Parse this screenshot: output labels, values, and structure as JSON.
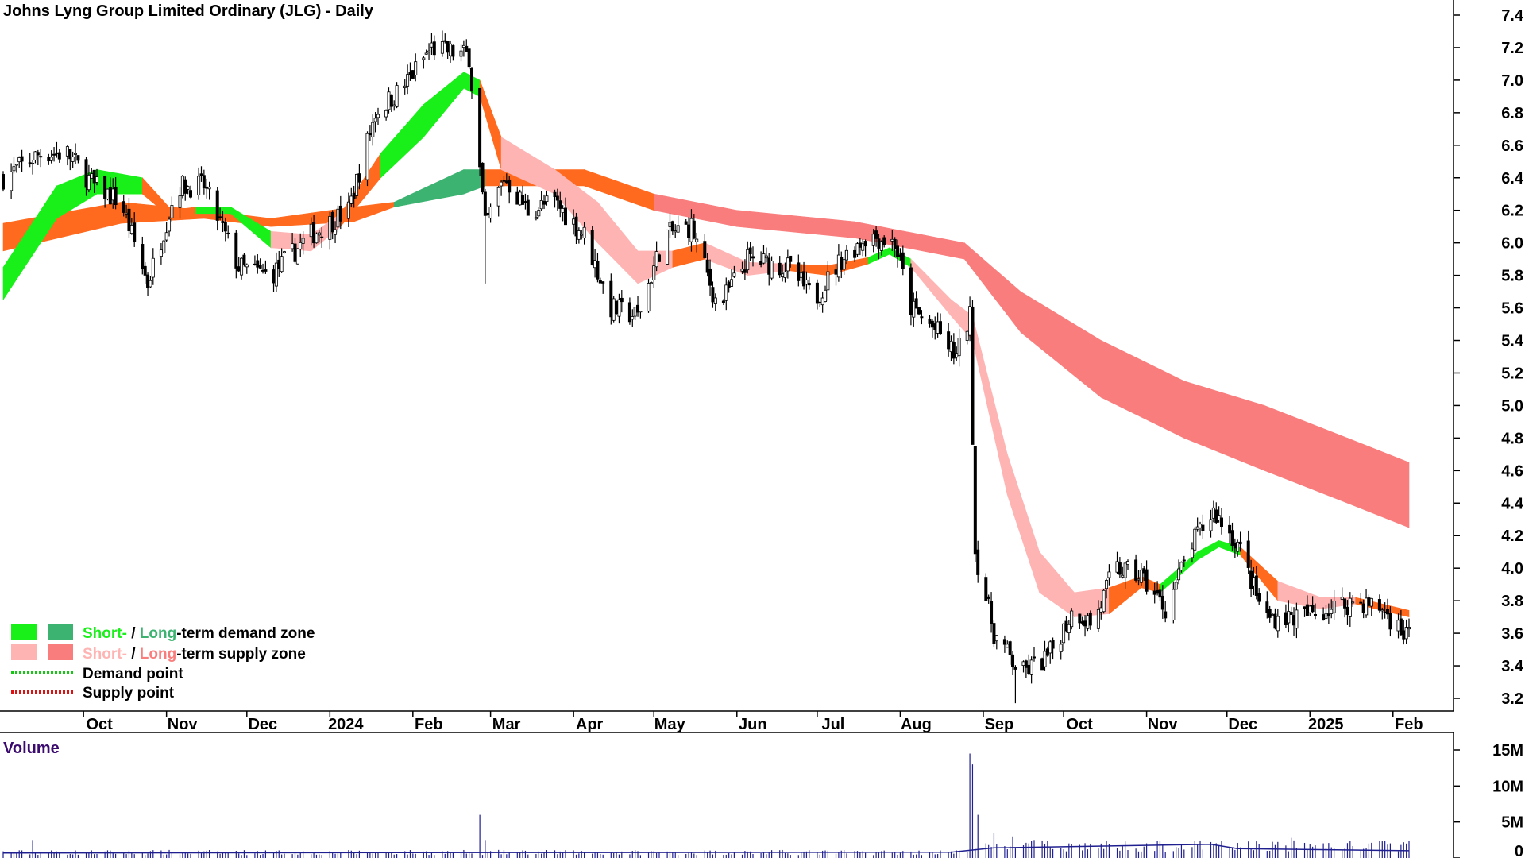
{
  "title": "Johns Lyng Group Limited Ordinary (JLG) - Daily",
  "legend": {
    "demand_short": "Short-",
    "demand_sep": " / ",
    "demand_long": "Long",
    "demand_rest": "-term demand zone",
    "supply_short": "Short-",
    "supply_sep": " / ",
    "supply_long": "Long",
    "supply_rest": "-term supply zone",
    "demand_point": "Demand point",
    "supply_point": "Supply point"
  },
  "volume_title": "Volume",
  "colors": {
    "short_demand": "#19ef19",
    "long_demand": "#3cb371",
    "short_supply": "#ffb4b4",
    "long_supply": "#fa7d7d",
    "orange": "#ff6a1f",
    "demand_point": "#12c912",
    "supply_point": "#e01010",
    "volume": "#1f1f8f"
  },
  "chart_data": {
    "type": "candlestick",
    "title": "Johns Lyng Group Limited Ordinary (JLG) - Daily",
    "y_ticks": [
      "7.4",
      "7.2",
      "7.0",
      "6.8",
      "6.6",
      "6.4",
      "6.2",
      "6.0",
      "5.8",
      "5.6",
      "5.4",
      "5.2",
      "5.0",
      "4.8",
      "4.6",
      "4.4",
      "4.2",
      "4.0",
      "3.8",
      "3.6",
      "3.4",
      "3.2"
    ],
    "ylim": [
      3.1,
      7.5
    ],
    "x_ticks": [
      "Oct",
      "Nov",
      "Dec",
      "2024",
      "Feb",
      "Mar",
      "Apr",
      "May",
      "Jun",
      "Jul",
      "Aug",
      "Sep",
      "Oct",
      "Nov",
      "Dec",
      "2025",
      "Feb"
    ],
    "price_path": [
      [
        "2023-09-01",
        6.4
      ],
      [
        "2023-09-15",
        6.55
      ],
      [
        "2023-09-25",
        6.55
      ],
      [
        "2023-10-05",
        6.35
      ],
      [
        "2023-10-15",
        6.25
      ],
      [
        "2023-10-25",
        5.75
      ],
      [
        "2023-11-05",
        6.35
      ],
      [
        "2023-11-15",
        6.35
      ],
      [
        "2023-11-28",
        5.85
      ],
      [
        "2023-12-10",
        5.8
      ],
      [
        "2023-12-25",
        6.05
      ],
      [
        "2024-01-08",
        6.2
      ],
      [
        "2024-01-18",
        6.8
      ],
      [
        "2024-01-28",
        6.95
      ],
      [
        "2024-02-08",
        7.2
      ],
      [
        "2024-02-22",
        7.15
      ],
      [
        "2024-02-28",
        6.1
      ],
      [
        "2024-03-06",
        6.4
      ],
      [
        "2024-03-15",
        6.2
      ],
      [
        "2024-03-25",
        6.25
      ],
      [
        "2024-04-05",
        6.05
      ],
      [
        "2024-04-15",
        5.6
      ],
      [
        "2024-04-25",
        5.55
      ],
      [
        "2024-05-05",
        6.05
      ],
      [
        "2024-05-15",
        6.1
      ],
      [
        "2024-05-25",
        5.6
      ],
      [
        "2024-06-05",
        5.9
      ],
      [
        "2024-06-20",
        5.85
      ],
      [
        "2024-06-30",
        5.65
      ],
      [
        "2024-07-10",
        5.9
      ],
      [
        "2024-07-20",
        6.05
      ],
      [
        "2024-07-30",
        6.0
      ],
      [
        "2024-08-05",
        5.6
      ],
      [
        "2024-08-15",
        5.45
      ],
      [
        "2024-08-22",
        5.3
      ],
      [
        "2024-08-27",
        5.55
      ],
      [
        "2024-08-29",
        4.1
      ],
      [
        "2024-09-05",
        3.6
      ],
      [
        "2024-09-15",
        3.35
      ],
      [
        "2024-09-25",
        3.45
      ],
      [
        "2024-10-05",
        3.75
      ],
      [
        "2024-10-12",
        3.65
      ],
      [
        "2024-10-20",
        4.0
      ],
      [
        "2024-10-30",
        3.95
      ],
      [
        "2024-11-08",
        3.75
      ],
      [
        "2024-11-18",
        4.15
      ],
      [
        "2024-11-26",
        4.35
      ],
      [
        "2024-12-05",
        4.15
      ],
      [
        "2024-12-15",
        3.7
      ],
      [
        "2024-12-28",
        3.7
      ],
      [
        "2025-01-08",
        3.75
      ],
      [
        "2025-01-18",
        3.8
      ],
      [
        "2025-01-28",
        3.75
      ],
      [
        "2025-02-05",
        3.6
      ]
    ],
    "zones": {
      "short_term": [
        {
          "date": "2023-09-01",
          "a": 5.65,
          "b": 5.85,
          "z": "short_demand"
        },
        {
          "date": "2023-09-21",
          "a": 6.15,
          "b": 6.35,
          "z": "short_demand"
        },
        {
          "date": "2023-10-06",
          "a": 6.3,
          "b": 6.45,
          "z": "short_demand"
        },
        {
          "date": "2023-10-23",
          "a": 6.3,
          "b": 6.4,
          "z": "orange"
        },
        {
          "date": "2023-11-03",
          "a": 6.15,
          "b": 6.2,
          "z": "orange"
        },
        {
          "date": "2023-11-12",
          "a": 6.18,
          "b": 6.22,
          "z": "short_demand"
        },
        {
          "date": "2023-11-25",
          "a": 6.18,
          "b": 6.22,
          "z": "short_demand"
        },
        {
          "date": "2023-12-10",
          "a": 5.97,
          "b": 6.07,
          "z": "short_supply"
        },
        {
          "date": "2023-12-25",
          "a": 5.95,
          "b": 6.05,
          "z": "short_supply"
        },
        {
          "date": "2024-01-05",
          "a": 6.1,
          "b": 6.18,
          "z": "orange"
        },
        {
          "date": "2024-01-20",
          "a": 6.4,
          "b": 6.55,
          "z": "short_demand"
        },
        {
          "date": "2024-02-05",
          "a": 6.65,
          "b": 6.85,
          "z": "short_demand"
        },
        {
          "date": "2024-02-20",
          "a": 6.95,
          "b": 7.05,
          "z": "short_demand"
        },
        {
          "date": "2024-02-26",
          "a": 6.9,
          "b": 7.0,
          "z": "orange"
        },
        {
          "date": "2024-03-05",
          "a": 6.45,
          "b": 6.65,
          "z": "short_supply"
        },
        {
          "date": "2024-03-25",
          "a": 6.3,
          "b": 6.45,
          "z": "short_supply"
        },
        {
          "date": "2024-04-10",
          "a": 6.0,
          "b": 6.25,
          "z": "short_supply"
        },
        {
          "date": "2024-04-25",
          "a": 5.75,
          "b": 5.95,
          "z": "short_supply"
        },
        {
          "date": "2024-05-08",
          "a": 5.85,
          "b": 5.95,
          "z": "orange"
        },
        {
          "date": "2024-05-20",
          "a": 5.9,
          "b": 6.0,
          "z": "short_supply"
        },
        {
          "date": "2024-06-05",
          "a": 5.8,
          "b": 5.88,
          "z": "short_supply"
        },
        {
          "date": "2024-06-20",
          "a": 5.83,
          "b": 5.87,
          "z": "orange"
        },
        {
          "date": "2024-07-05",
          "a": 5.8,
          "b": 5.86,
          "z": "orange"
        },
        {
          "date": "2024-07-20",
          "a": 5.87,
          "b": 5.91,
          "z": "short_demand"
        },
        {
          "date": "2024-07-28",
          "a": 5.93,
          "b": 5.97,
          "z": "short_demand"
        },
        {
          "date": "2024-08-05",
          "a": 5.85,
          "b": 5.9,
          "z": "short_supply"
        },
        {
          "date": "2024-08-20",
          "a": 5.55,
          "b": 5.65,
          "z": "short_supply"
        },
        {
          "date": "2024-08-28",
          "a": 5.4,
          "b": 5.55,
          "z": "short_supply"
        },
        {
          "date": "2024-09-10",
          "a": 4.45,
          "b": 4.7,
          "z": "short_supply"
        },
        {
          "date": "2024-09-22",
          "a": 3.85,
          "b": 4.1,
          "z": "short_supply"
        },
        {
          "date": "2024-10-05",
          "a": 3.7,
          "b": 3.85,
          "z": "short_supply"
        },
        {
          "date": "2024-10-18",
          "a": 3.72,
          "b": 3.88,
          "z": "orange"
        },
        {
          "date": "2024-10-30",
          "a": 3.88,
          "b": 3.95,
          "z": "orange"
        },
        {
          "date": "2024-11-06",
          "a": 3.85,
          "b": 3.9,
          "z": "short_demand"
        },
        {
          "date": "2024-11-20",
          "a": 4.05,
          "b": 4.1,
          "z": "short_demand"
        },
        {
          "date": "2024-11-28",
          "a": 4.13,
          "b": 4.17,
          "z": "short_demand"
        },
        {
          "date": "2024-12-06",
          "a": 4.08,
          "b": 4.13,
          "z": "orange"
        },
        {
          "date": "2024-12-20",
          "a": 3.8,
          "b": 3.92,
          "z": "short_supply"
        },
        {
          "date": "2025-01-05",
          "a": 3.75,
          "b": 3.82,
          "z": "short_supply"
        },
        {
          "date": "2025-01-18",
          "a": 3.78,
          "b": 3.82,
          "z": "orange"
        },
        {
          "date": "2025-02-07",
          "a": 3.7,
          "b": 3.74,
          "z": "short_supply"
        }
      ],
      "long_term": [
        {
          "date": "2023-09-01",
          "a": 5.95,
          "b": 6.12,
          "z": "orange"
        },
        {
          "date": "2023-10-15",
          "a": 6.12,
          "b": 6.25,
          "z": "orange"
        },
        {
          "date": "2023-11-15",
          "a": 6.15,
          "b": 6.2,
          "z": "orange"
        },
        {
          "date": "2023-12-10",
          "a": 6.1,
          "b": 6.15,
          "z": "orange"
        },
        {
          "date": "2024-01-10",
          "a": 6.13,
          "b": 6.22,
          "z": "orange"
        },
        {
          "date": "2024-01-25",
          "a": 6.22,
          "b": 6.25,
          "z": "long_demand"
        },
        {
          "date": "2024-02-20",
          "a": 6.3,
          "b": 6.45,
          "z": "long_demand"
        },
        {
          "date": "2024-02-28",
          "a": 6.35,
          "b": 6.45,
          "z": "orange"
        },
        {
          "date": "2024-04-05",
          "a": 6.35,
          "b": 6.45,
          "z": "orange"
        },
        {
          "date": "2024-05-01",
          "a": 6.2,
          "b": 6.3,
          "z": "long_supply"
        },
        {
          "date": "2024-06-01",
          "a": 6.1,
          "b": 6.2,
          "z": "long_supply"
        },
        {
          "date": "2024-07-15",
          "a": 6.03,
          "b": 6.13,
          "z": "long_supply"
        },
        {
          "date": "2024-08-25",
          "a": 5.9,
          "b": 6.0,
          "z": "long_supply"
        },
        {
          "date": "2024-09-15",
          "a": 5.45,
          "b": 5.7,
          "z": "long_supply"
        },
        {
          "date": "2024-10-15",
          "a": 5.05,
          "b": 5.4,
          "z": "long_supply"
        },
        {
          "date": "2024-11-15",
          "a": 4.8,
          "b": 5.15,
          "z": "long_supply"
        },
        {
          "date": "2024-12-15",
          "a": 4.6,
          "b": 5.0,
          "z": "long_supply"
        },
        {
          "date": "2025-01-15",
          "a": 4.4,
          "b": 4.8,
          "z": "long_supply"
        },
        {
          "date": "2025-02-07",
          "a": 4.25,
          "b": 4.65,
          "z": "long_supply"
        }
      ]
    },
    "volume": {
      "y_ticks": [
        "15M",
        "10M",
        "5M",
        "0"
      ],
      "ylim": [
        0,
        15
      ],
      "unit": "M",
      "typical_daily": 0.8,
      "spikes": [
        {
          "date": "2023-09-12",
          "value": 2.5
        },
        {
          "date": "2024-02-10",
          "value": 1.8
        },
        {
          "date": "2024-02-26",
          "value": 6.0
        },
        {
          "date": "2024-02-28",
          "value": 2.5
        },
        {
          "date": "2024-08-27",
          "value": 14.5
        },
        {
          "date": "2024-08-28",
          "value": 13.0
        },
        {
          "date": "2024-08-30",
          "value": 6.0
        },
        {
          "date": "2024-09-05",
          "value": 3.5
        },
        {
          "date": "2024-09-12",
          "value": 3.0
        },
        {
          "date": "2024-09-20",
          "value": 2.5
        },
        {
          "date": "2024-10-15",
          "value": 2.0
        },
        {
          "date": "2024-12-25",
          "value": 2.8
        }
      ],
      "avg_line": [
        {
          "date": "2023-09-01",
          "value": 0.7
        },
        {
          "date": "2024-08-20",
          "value": 0.8
        },
        {
          "date": "2024-09-05",
          "value": 1.4
        },
        {
          "date": "2024-11-25",
          "value": 1.9
        },
        {
          "date": "2024-12-05",
          "value": 1.3
        },
        {
          "date": "2025-02-07",
          "value": 1.0
        }
      ]
    }
  }
}
